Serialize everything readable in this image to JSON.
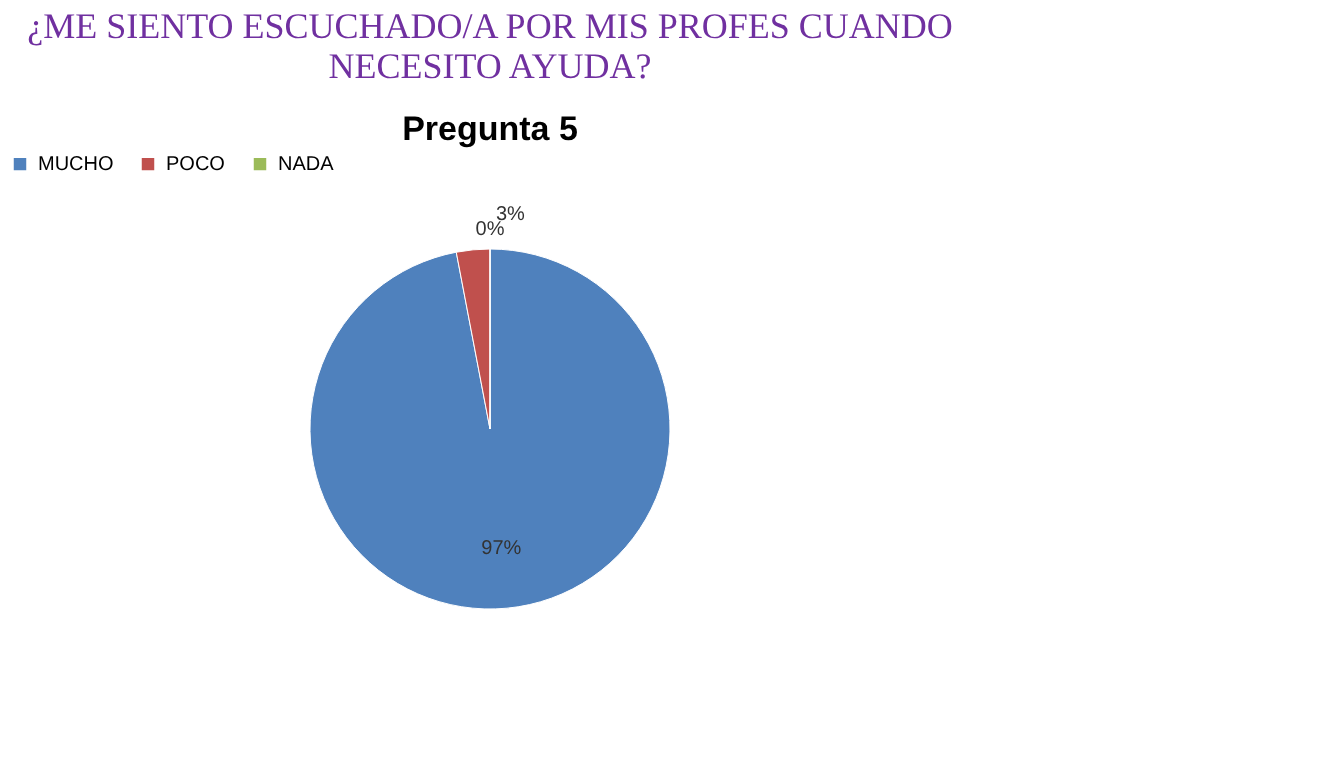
{
  "chart_data": {
    "type": "pie",
    "title": "¿ME SIENTO ESCUCHADO/A POR MIS PROFES CUANDO NECESITO AYUDA?",
    "subtitle": "Pregunta 5",
    "categories": [
      "MUCHO",
      "POCO",
      "NADA"
    ],
    "values": [
      97,
      3,
      0
    ],
    "colors": [
      "#4f81bd",
      "#c0504d",
      "#9bbb59"
    ],
    "value_labels": [
      "97%",
      "3%",
      "0%"
    ],
    "legend": "top"
  }
}
